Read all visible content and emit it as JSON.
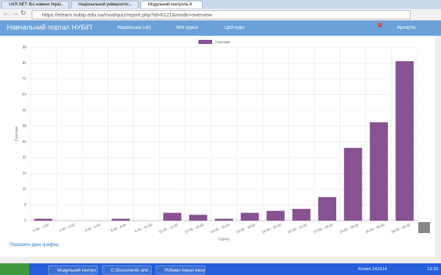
{
  "browser": {
    "tabs": [
      "UKR.NET: Всі новини Украї...",
      "Національний університет...",
      "Модульний контроль 4"
    ],
    "address": "https://elearn.nubip.edu.ua/mod/quiz/report.php?id=6121&mode=overview"
  },
  "navbar": {
    "brand": "Навчальний портал НУБіП",
    "language": "Українська (uk)",
    "my_courses": "Мої курси",
    "this_course": "Цей курс",
    "badge": "1",
    "user": "Арнаута"
  },
  "chart_data": {
    "type": "bar",
    "legend": "Учасники",
    "y_label": "Учасники",
    "x_label": "Оцінка",
    "color": "#875393",
    "grid": true,
    "categories": [
      "0.00 - 2.00",
      "2.00 - 4.00",
      "4.00 - 6.00",
      "6.00 - 8.00",
      "8.00 - 10.00",
      "10.00 - 12.00",
      "12.00 - 14.00",
      "14.00 - 16.00",
      "16.00 - 18.00",
      "18.00 - 20.00",
      "20.00 - 22.00",
      "22.00 - 24.00",
      "24.00 - 26.00",
      "26.00 - 28.00",
      "28.00 - 30.00"
    ],
    "values": [
      1,
      0,
      0,
      1,
      0,
      4,
      3,
      1,
      4,
      5,
      6,
      12,
      37,
      50,
      81
    ],
    "ylim": [
      0,
      88
    ],
    "yticks": [
      0,
      8,
      16,
      24,
      32,
      40,
      48,
      56,
      64,
      72,
      80,
      88
    ]
  },
  "link": "Показати дані графіку",
  "taskbar": {
    "items": [
      "Модульний контро...",
      "C:\\Documents and ...",
      "Робимо перші висн..."
    ],
    "keyboard": "Копия 241014",
    "clock": "12:31"
  }
}
